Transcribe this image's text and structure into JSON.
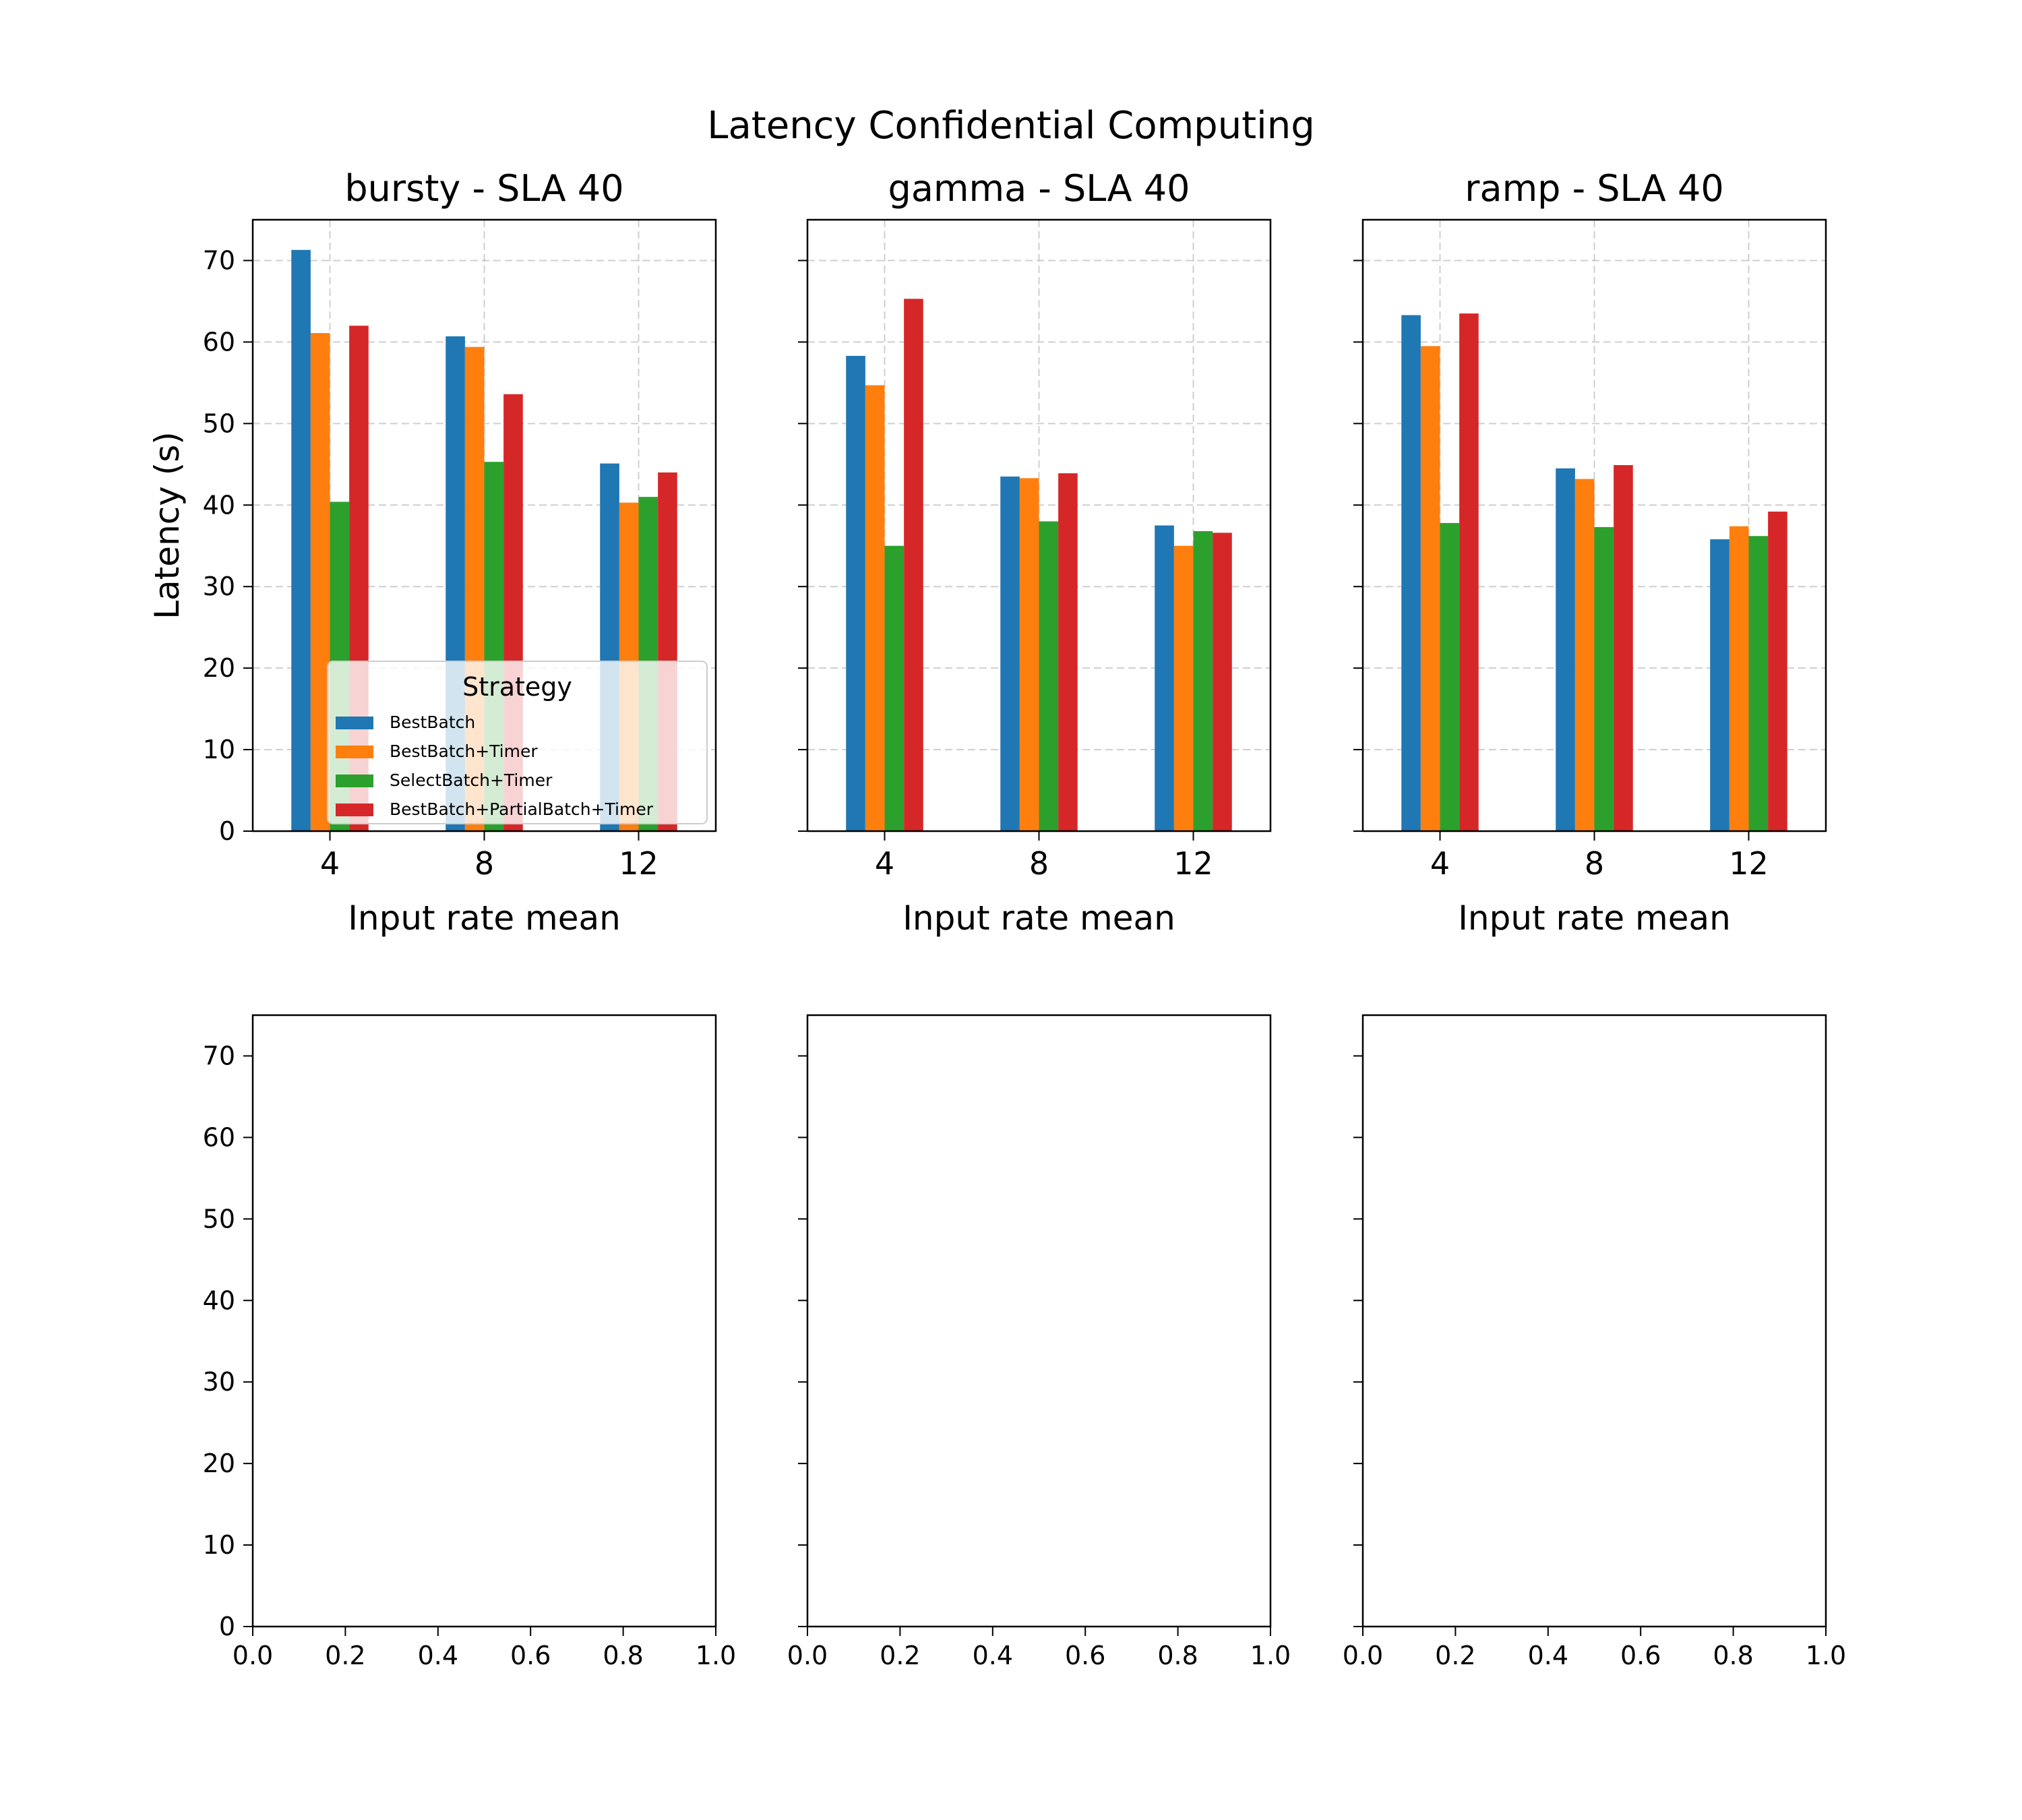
{
  "figure": {
    "title": "Latency Confidential Computing",
    "ylabel": "Latency (s)",
    "legend_title": "Strategy",
    "legend_position": "lower-right of first panel"
  },
  "chart_data": [
    {
      "type": "bar",
      "title": "bursty - SLA 40",
      "xlabel": "Input rate mean",
      "ylabel": "Latency (s)",
      "categories": [
        "4",
        "8",
        "12"
      ],
      "ylim": [
        0,
        75
      ],
      "yticks": [
        0,
        10,
        20,
        30,
        40,
        50,
        60,
        70
      ],
      "grid": true,
      "series": [
        {
          "name": "BestBatch",
          "color": "#1f77b4",
          "values": [
            71.3,
            60.7,
            45.1
          ]
        },
        {
          "name": "BestBatch+Timer",
          "color": "#ff7f0e",
          "values": [
            61.1,
            59.4,
            40.3
          ]
        },
        {
          "name": "SelectBatch+Timer",
          "color": "#2ca02c",
          "values": [
            40.4,
            45.3,
            41.0
          ]
        },
        {
          "name": "BestBatch+PartialBatch+Timer",
          "color": "#d62728",
          "values": [
            62.0,
            53.6,
            44.0
          ]
        }
      ]
    },
    {
      "type": "bar",
      "title": "gamma - SLA 40",
      "xlabel": "Input rate mean",
      "categories": [
        "4",
        "8",
        "12"
      ],
      "ylim": [
        0,
        75
      ],
      "grid": true,
      "series": [
        {
          "name": "BestBatch",
          "color": "#1f77b4",
          "values": [
            58.3,
            43.5,
            37.5
          ]
        },
        {
          "name": "BestBatch+Timer",
          "color": "#ff7f0e",
          "values": [
            54.7,
            43.3,
            35.0
          ]
        },
        {
          "name": "SelectBatch+Timer",
          "color": "#2ca02c",
          "values": [
            35.0,
            38.0,
            36.8
          ]
        },
        {
          "name": "BestBatch+PartialBatch+Timer",
          "color": "#d62728",
          "values": [
            65.3,
            43.9,
            36.6
          ]
        }
      ]
    },
    {
      "type": "bar",
      "title": "ramp - SLA 40",
      "xlabel": "Input rate mean",
      "categories": [
        "4",
        "8",
        "12"
      ],
      "ylim": [
        0,
        75
      ],
      "grid": true,
      "series": [
        {
          "name": "BestBatch",
          "color": "#1f77b4",
          "values": [
            63.3,
            44.5,
            35.8
          ]
        },
        {
          "name": "BestBatch+Timer",
          "color": "#ff7f0e",
          "values": [
            59.5,
            43.2,
            37.4
          ]
        },
        {
          "name": "SelectBatch+Timer",
          "color": "#2ca02c",
          "values": [
            37.8,
            37.3,
            36.2
          ]
        },
        {
          "name": "BestBatch+PartialBatch+Timer",
          "color": "#d62728",
          "values": [
            63.5,
            44.9,
            39.2
          ]
        }
      ]
    },
    {
      "type": "bar",
      "title": "",
      "empty": true,
      "ylim": [
        0,
        75
      ],
      "yticks": [
        0,
        10,
        20,
        30,
        40,
        50,
        60,
        70
      ],
      "xticks": [
        "0.0",
        "0.2",
        "0.4",
        "0.6",
        "0.8",
        "1.0"
      ],
      "series": []
    },
    {
      "type": "bar",
      "title": "",
      "empty": true,
      "ylim": [
        0,
        75
      ],
      "xticks": [
        "0.0",
        "0.2",
        "0.4",
        "0.6",
        "0.8",
        "1.0"
      ],
      "series": []
    },
    {
      "type": "bar",
      "title": "",
      "empty": true,
      "ylim": [
        0,
        75
      ],
      "xticks": [
        "0.0",
        "0.2",
        "0.4",
        "0.6",
        "0.8",
        "1.0"
      ],
      "series": []
    }
  ]
}
